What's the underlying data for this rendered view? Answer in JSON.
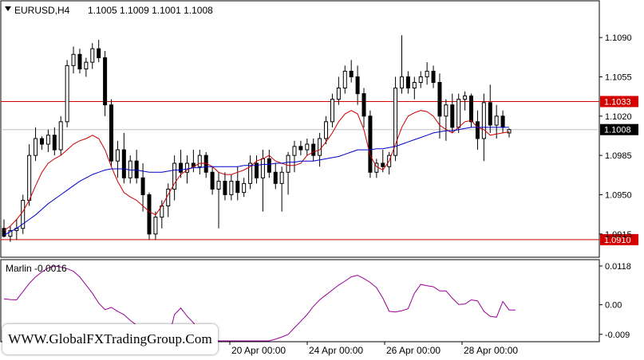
{
  "chart_data": [
    {
      "type": "candlestick",
      "symbol_label": "EURUSD,H4",
      "ohlc_label": "1.1005 1.1009 1.1001 1.1008",
      "ylim": [
        1.0895,
        1.1122
      ],
      "y_ticks": [
        "1.1090",
        "1.1055",
        "1.1020",
        "1.0985",
        "1.0950",
        "1.0915"
      ],
      "x_ticks": [
        "20 Apr 00:00",
        "24 Apr 00:00",
        "26 Apr 00:00",
        "28 Apr 00:00"
      ],
      "horizontal_levels": [
        {
          "value": 1.1033,
          "label": "1.1033",
          "color": "#d40000"
        },
        {
          "value": 1.091,
          "label": "1.0910",
          "color": "#d40000"
        }
      ],
      "current_price": {
        "value": 1.1008,
        "label": "1.1008"
      },
      "candles": [
        [
          1.092,
          1.0928,
          1.0912,
          1.0913
        ],
        [
          1.0913,
          1.0922,
          1.0908,
          1.0918
        ],
        [
          1.0918,
          1.0928,
          1.091,
          1.092
        ],
        [
          1.092,
          1.095,
          1.0915,
          1.0945
        ],
        [
          1.0945,
          1.0995,
          1.094,
          1.0985
        ],
        [
          1.0985,
          1.101,
          1.098,
          1.1
        ],
        [
          1.1,
          1.1002,
          1.099,
          1.0995
        ],
        [
          1.0995,
          1.1008,
          1.0988,
          1.1003
        ],
        [
          1.1003,
          1.101,
          1.0985,
          1.099
        ],
        [
          1.099,
          1.102,
          1.0985,
          1.1015
        ],
        [
          1.1015,
          1.107,
          1.101,
          1.1065
        ],
        [
          1.1065,
          1.1082,
          1.1058,
          1.1075
        ],
        [
          1.1075,
          1.108,
          1.1058,
          1.1062
        ],
        [
          1.1062,
          1.1072,
          1.1055,
          1.1068
        ],
        [
          1.1068,
          1.1085,
          1.1062,
          1.108
        ],
        [
          1.108,
          1.1088,
          1.1068,
          1.1072
        ],
        [
          1.1072,
          1.1078,
          1.102,
          1.103
        ],
        [
          1.103,
          1.1035,
          1.0975,
          1.098
        ],
        [
          1.098,
          1.0998,
          1.0965,
          1.099
        ],
        [
          1.099,
          1.1005,
          1.096,
          1.0965
        ],
        [
          1.0965,
          1.0985,
          1.096,
          1.098
        ],
        [
          1.098,
          1.099,
          1.096,
          1.0965
        ],
        [
          1.0965,
          1.0978,
          1.0935,
          1.095
        ],
        [
          1.095,
          1.0952,
          1.091,
          1.0915
        ],
        [
          1.0915,
          1.0935,
          1.091,
          1.093
        ],
        [
          1.093,
          1.0945,
          1.092,
          1.094
        ],
        [
          1.094,
          1.096,
          1.093,
          1.0955
        ],
        [
          1.0955,
          1.0985,
          1.0945,
          1.0978
        ],
        [
          1.0978,
          1.099,
          1.0965,
          1.097
        ],
        [
          1.097,
          1.0985,
          1.096,
          1.0978
        ],
        [
          1.0978,
          1.099,
          1.097,
          1.0975
        ],
        [
          1.0975,
          1.099,
          1.0968,
          1.0985
        ],
        [
          1.0985,
          1.0988,
          1.0965,
          1.097
        ],
        [
          1.097,
          1.0975,
          1.095,
          1.0955
        ],
        [
          1.0955,
          1.097,
          1.092,
          1.0962
        ],
        [
          1.0962,
          1.097,
          1.0945,
          1.095
        ],
        [
          1.095,
          1.0968,
          1.0945,
          1.0962
        ],
        [
          1.0962,
          1.0975,
          1.0945,
          1.0952
        ],
        [
          1.0952,
          1.0965,
          1.0948,
          1.096
        ],
        [
          1.096,
          1.0985,
          1.0955,
          1.0978
        ],
        [
          1.0978,
          1.0985,
          1.096,
          1.0965
        ],
        [
          1.0965,
          1.099,
          1.0935,
          1.0982
        ],
        [
          1.0982,
          1.099,
          1.0965,
          1.097
        ],
        [
          1.097,
          1.0978,
          1.0955,
          1.096
        ],
        [
          1.096,
          1.0975,
          1.0935,
          1.097
        ],
        [
          1.097,
          1.0988,
          1.095,
          1.0985
        ],
        [
          1.0985,
          1.0998,
          1.097,
          1.0993
        ],
        [
          1.0993,
          1.0998,
          1.0985,
          1.099
        ],
        [
          1.099,
          1.1,
          1.0985,
          1.0995
        ],
        [
          1.0995,
          1.1,
          1.098,
          1.0985
        ],
        [
          1.0985,
          1.1005,
          1.0975,
          1.1
        ],
        [
          1.1,
          1.102,
          1.0995,
          1.1015
        ],
        [
          1.1015,
          1.104,
          1.101,
          1.1035
        ],
        [
          1.1035,
          1.1055,
          1.103,
          1.1045
        ],
        [
          1.1045,
          1.1065,
          1.104,
          1.106
        ],
        [
          1.106,
          1.107,
          1.105,
          1.1055
        ],
        [
          1.1055,
          1.1065,
          1.103,
          1.104
        ],
        [
          1.104,
          1.1045,
          1.101,
          1.102
        ],
        [
          1.102,
          1.1025,
          1.0965,
          1.097
        ],
        [
          1.097,
          1.0982,
          1.0965,
          1.0978
        ],
        [
          1.0978,
          1.099,
          1.097,
          1.0975
        ],
        [
          1.0975,
          1.0988,
          1.0968,
          1.0985
        ],
        [
          1.0985,
          1.1055,
          1.098,
          1.1045
        ],
        [
          1.1045,
          1.1092,
          1.104,
          1.1055
        ],
        [
          1.1055,
          1.106,
          1.104,
          1.1045
        ],
        [
          1.1045,
          1.1055,
          1.1035,
          1.105
        ],
        [
          1.105,
          1.106,
          1.1045,
          1.1055
        ],
        [
          1.1055,
          1.1068,
          1.1048,
          1.106
        ],
        [
          1.106,
          1.1065,
          1.1045,
          1.105
        ],
        [
          1.105,
          1.1058,
          1.1,
          1.102
        ],
        [
          1.102,
          1.1035,
          1.0998,
          1.103
        ],
        [
          1.103,
          1.104,
          1.1005,
          1.101
        ],
        [
          1.101,
          1.104,
          1.1005,
          1.1035
        ],
        [
          1.1035,
          1.1042,
          1.1025,
          1.1038
        ],
        [
          1.1038,
          1.104,
          1.101,
          1.1015
        ],
        [
          1.1015,
          1.1025,
          1.099,
          1.1
        ],
        [
          1.1,
          1.104,
          1.098,
          1.1032
        ],
        [
          1.1032,
          1.1048,
          1.1005,
          1.1012
        ],
        [
          1.1012,
          1.103,
          1.1,
          1.102
        ],
        [
          1.102,
          1.1025,
          1.1005,
          1.101
        ],
        [
          1.1005,
          1.1009,
          1.1001,
          1.1008
        ]
      ],
      "series": [
        {
          "name": "",
          "color": "#cc0000",
          "values": [
            1.0918,
            1.0922,
            1.0928,
            1.0935,
            1.0945,
            1.0958,
            1.097,
            1.0978,
            1.0982,
            1.0985,
            1.099,
            1.0995,
            1.0998,
            1.1,
            1.1003,
            1.1,
            1.099,
            1.0975,
            1.0962,
            1.0952,
            1.0948,
            1.0945,
            1.094,
            1.0935,
            1.0932,
            1.094,
            1.095,
            1.096,
            1.0968,
            1.0972,
            1.0975,
            1.0978,
            1.0978,
            1.0975,
            1.097,
            1.0968,
            1.0968,
            1.097,
            1.0972,
            1.0975,
            1.098,
            1.0982,
            1.0985,
            1.098,
            1.0978,
            1.0976,
            1.0976,
            1.0978,
            1.0985,
            1.0988,
            1.099,
            1.0997,
            1.1005,
            1.1015,
            1.1022,
            1.1025,
            1.1022,
            1.1008,
            1.0985,
            1.0975,
            1.0972,
            1.098,
            1.0995,
            1.101,
            1.102,
            1.1023,
            1.1025,
            1.1024,
            1.102,
            1.1012,
            1.1008,
            1.1005,
            1.101,
            1.1015,
            1.1016,
            1.101,
            1.1008,
            1.1003,
            1.1004,
            1.1005,
            1.1006
          ]
        },
        {
          "name": "",
          "color": "#0000cc",
          "values": [
            1.0914,
            1.0917,
            1.092,
            1.0924,
            1.0928,
            1.0932,
            1.0937,
            1.0942,
            1.0946,
            1.095,
            1.0954,
            1.0958,
            1.0962,
            1.0965,
            1.0968,
            1.097,
            1.0972,
            1.0973,
            1.0973,
            1.0973,
            1.0972,
            1.0972,
            1.0971,
            1.097,
            1.097,
            1.097,
            1.0971,
            1.0972,
            1.0972,
            1.0973,
            1.0974,
            1.0974,
            1.0975,
            1.0975,
            1.0975,
            1.0975,
            1.0975,
            1.0975,
            1.0976,
            1.0976,
            1.0976,
            1.0977,
            1.0977,
            1.0978,
            1.0978,
            1.0979,
            1.0979,
            1.098,
            1.098,
            1.098,
            1.0981,
            1.0982,
            1.0983,
            1.0984,
            1.0986,
            1.0988,
            1.099,
            1.099,
            1.099,
            1.0991,
            1.0991,
            1.0992,
            1.0993,
            1.0995,
            1.0997,
            1.0999,
            1.1001,
            1.1003,
            1.1005,
            1.1006,
            1.1007,
            1.1007,
            1.1008,
            1.1009,
            1.101,
            1.101,
            1.101,
            1.101,
            1.101,
            1.101,
            1.101
          ]
        }
      ]
    },
    {
      "type": "line",
      "indicator_label": "Marlin -0.0016",
      "ylim": [
        -0.011,
        0.0135
      ],
      "y_ticks": [
        "0.0118",
        "0.00",
        "-0.009"
      ],
      "series": [
        {
          "name": "",
          "color": "#990099",
          "values": [
            0.0018,
            0.0016,
            0.0015,
            0.004,
            0.0065,
            0.0085,
            0.01,
            0.0112,
            0.0118,
            0.0115,
            0.011,
            0.0102,
            0.0085,
            0.006,
            0.0035,
            0.0005,
            -0.0015,
            -0.0008,
            -0.002,
            -0.003,
            -0.0048,
            -0.0062,
            -0.008,
            -0.0095,
            -0.011,
            -0.011,
            -0.011,
            -0.003,
            -0.001,
            -0.0035,
            -0.0055,
            -0.008,
            -0.01,
            -0.011,
            -0.011,
            -0.011,
            -0.011,
            -0.011,
            -0.011,
            -0.011,
            -0.011,
            -0.011,
            -0.011,
            -0.0105,
            -0.0098,
            -0.009,
            -0.007,
            -0.005,
            -0.003,
            -0.0005,
            0.0015,
            0.003,
            0.0045,
            0.006,
            0.0072,
            0.0085,
            0.009,
            0.008,
            0.0068,
            0.0052,
            0.002,
            -0.002,
            -0.0022,
            -0.0018,
            -0.0012,
            0.0035,
            0.0062,
            0.0058,
            0.0055,
            0.0042,
            0.0042,
            0.002,
            0.0001,
            0.0002,
            0.0015,
            0.0012,
            -0.002,
            -0.0035,
            -0.0038,
            0.001,
            -0.0016,
            -0.0016
          ]
        }
      ]
    }
  ],
  "watermark": "WWW.GlobalFXTradingGroup.Com"
}
